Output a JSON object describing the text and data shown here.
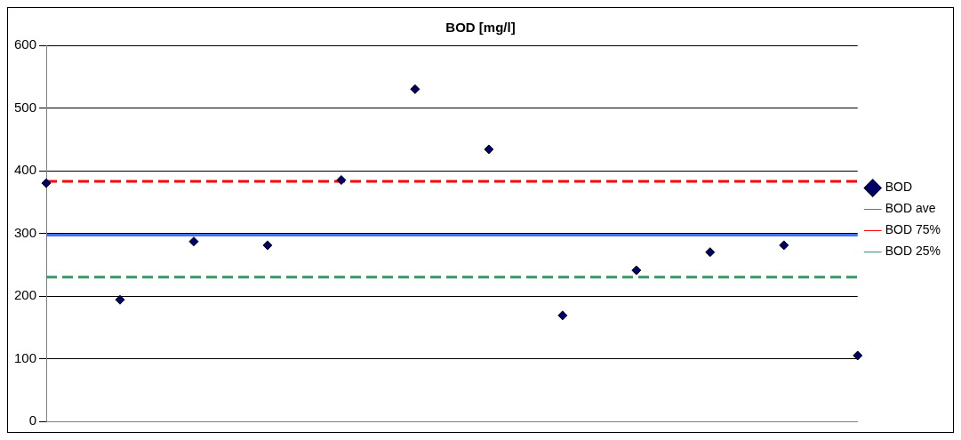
{
  "chart_data": {
    "type": "scatter",
    "title": "BOD [mg/l]",
    "categories": [
      null,
      null,
      null,
      null,
      null,
      null,
      null,
      null,
      null,
      null,
      null,
      null
    ],
    "series": [
      {
        "name": "BOD",
        "type": "scatter",
        "color": "#000066",
        "marker": "diamond",
        "values": [
          380,
          194,
          287,
          281,
          385,
          530,
          434,
          169,
          241,
          270,
          281,
          105
        ]
      },
      {
        "name": "BOD ave",
        "type": "line",
        "color": "#4472ee",
        "marker": "none",
        "line_style": "solid",
        "values": [
          297,
          297,
          297,
          297,
          297,
          297,
          297,
          297,
          297,
          297,
          297,
          297
        ]
      },
      {
        "name": "BOD 75%",
        "type": "line",
        "color": "#ff0000",
        "marker": "none",
        "line_style": "dashed",
        "values": [
          383,
          383,
          383,
          383,
          383,
          383,
          383,
          383,
          383,
          383,
          383,
          383
        ]
      },
      {
        "name": "BOD 25%",
        "type": "line",
        "color": "#339966",
        "marker": "none",
        "line_style": "dashed",
        "values": [
          230,
          230,
          230,
          230,
          230,
          230,
          230,
          230,
          230,
          230,
          230,
          230
        ]
      }
    ],
    "ylim": [
      0,
      600
    ],
    "yticks": [
      0,
      100,
      200,
      300,
      400,
      500,
      600
    ],
    "grid": "y",
    "legend": "right"
  }
}
